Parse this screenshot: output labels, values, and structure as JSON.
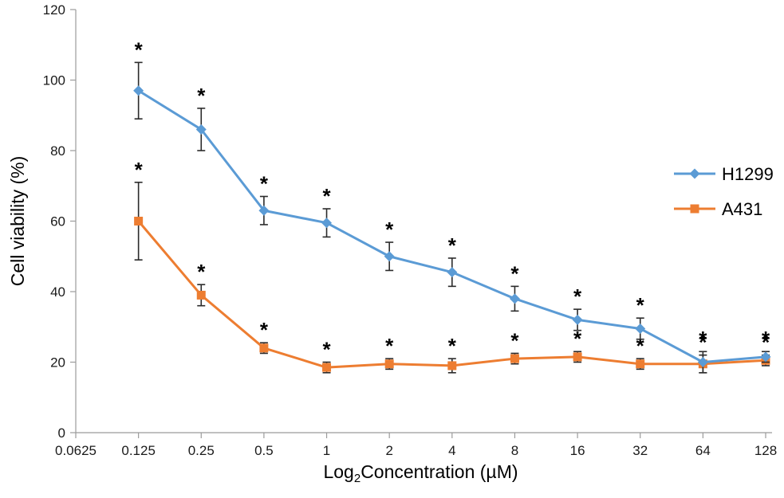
{
  "chart_data": {
    "type": "line",
    "title": "",
    "xlabel": "Log2Concentration (µM)",
    "xlabel_parts": {
      "prefix": "Log",
      "subscript": "2",
      "suffix": "Concentration (µM)"
    },
    "ylabel": "Cell viability (%)",
    "x_scale": "log2-category",
    "x_tick_labels": [
      "0.0625",
      "0.125",
      "0.25",
      "0.5",
      "1",
      "2",
      "4",
      "8",
      "16",
      "32",
      "64",
      "128"
    ],
    "data_x": [
      0.125,
      0.25,
      0.5,
      1,
      2,
      4,
      8,
      16,
      32,
      64,
      128
    ],
    "ylim": [
      0,
      120
    ],
    "y_ticks": [
      0,
      20,
      40,
      60,
      80,
      100,
      120
    ],
    "grid": false,
    "significance_marker": "*",
    "series": [
      {
        "name": "A431",
        "color": "#ED7D31",
        "marker": "square",
        "values": [
          60,
          39,
          24,
          18.5,
          19.5,
          19,
          21,
          21.5,
          19.5,
          19.5,
          20.5
        ],
        "errors": [
          11,
          3,
          1.5,
          1.5,
          1.5,
          2,
          1.5,
          1.5,
          1.5,
          2.5,
          1.5
        ],
        "significant": [
          true,
          true,
          true,
          true,
          true,
          true,
          true,
          true,
          true,
          true,
          true
        ]
      },
      {
        "name": "H1299",
        "color": "#5B9BD5",
        "marker": "diamond",
        "values": [
          97,
          86,
          63,
          59.5,
          50,
          45.5,
          38,
          32,
          29.5,
          20,
          21.5
        ],
        "errors": [
          8,
          6,
          4,
          4,
          4,
          4,
          3.5,
          3,
          3,
          3,
          1.5
        ],
        "significant": [
          true,
          true,
          true,
          true,
          true,
          true,
          true,
          true,
          true,
          true,
          true
        ]
      }
    ],
    "legend": {
      "position": "middle-right",
      "entries": [
        {
          "name": "H1299",
          "color": "#5B9BD5",
          "marker": "diamond"
        },
        {
          "name": "A431",
          "color": "#ED7D31",
          "marker": "square"
        }
      ]
    }
  },
  "layout_text": {
    "note": ""
  }
}
